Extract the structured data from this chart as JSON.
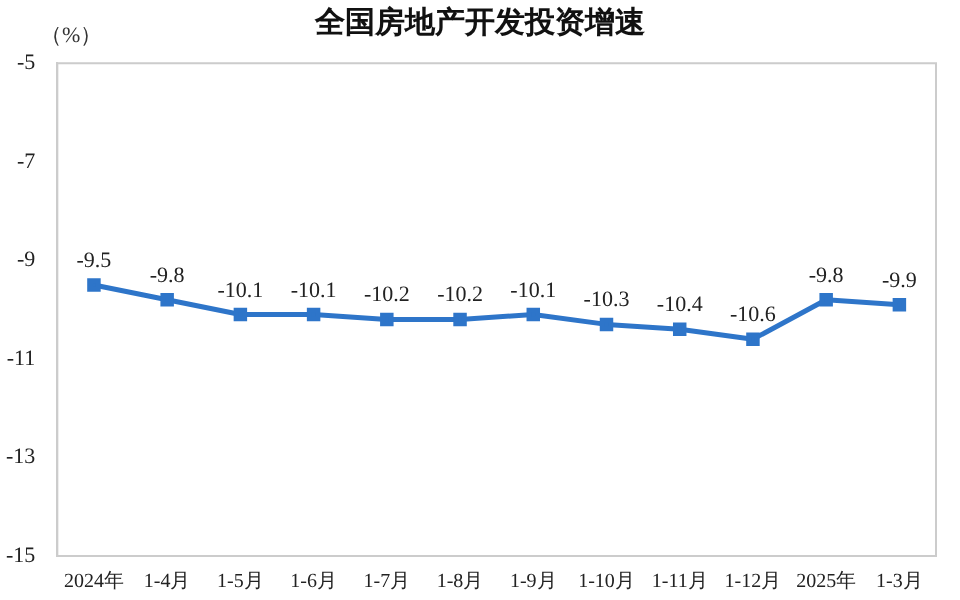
{
  "chart_data": {
    "type": "line",
    "title": "全国房地产开发投资增速",
    "ylabel": "（%）",
    "categories": [
      "2024年",
      "1-4月",
      "1-5月",
      "1-6月",
      "1-7月",
      "1-8月",
      "1-9月",
      "1-10月",
      "1-11月",
      "1-12月",
      "2025年",
      "1-3月"
    ],
    "series": [
      {
        "color": "#2e75c9",
        "values": [
          -9.5,
          -9.8,
          -10.1,
          -10.1,
          -10.2,
          -10.2,
          -10.1,
          -10.3,
          -10.4,
          -10.6,
          -9.8,
          -9.9
        ]
      }
    ],
    "ylim": [
      -15,
      -5
    ],
    "yticks": [
      -5,
      -7,
      -9,
      -11,
      -13,
      -15
    ],
    "grid": false,
    "legend": false,
    "marker": "square",
    "line_style": "solid",
    "data_labels": true
  }
}
